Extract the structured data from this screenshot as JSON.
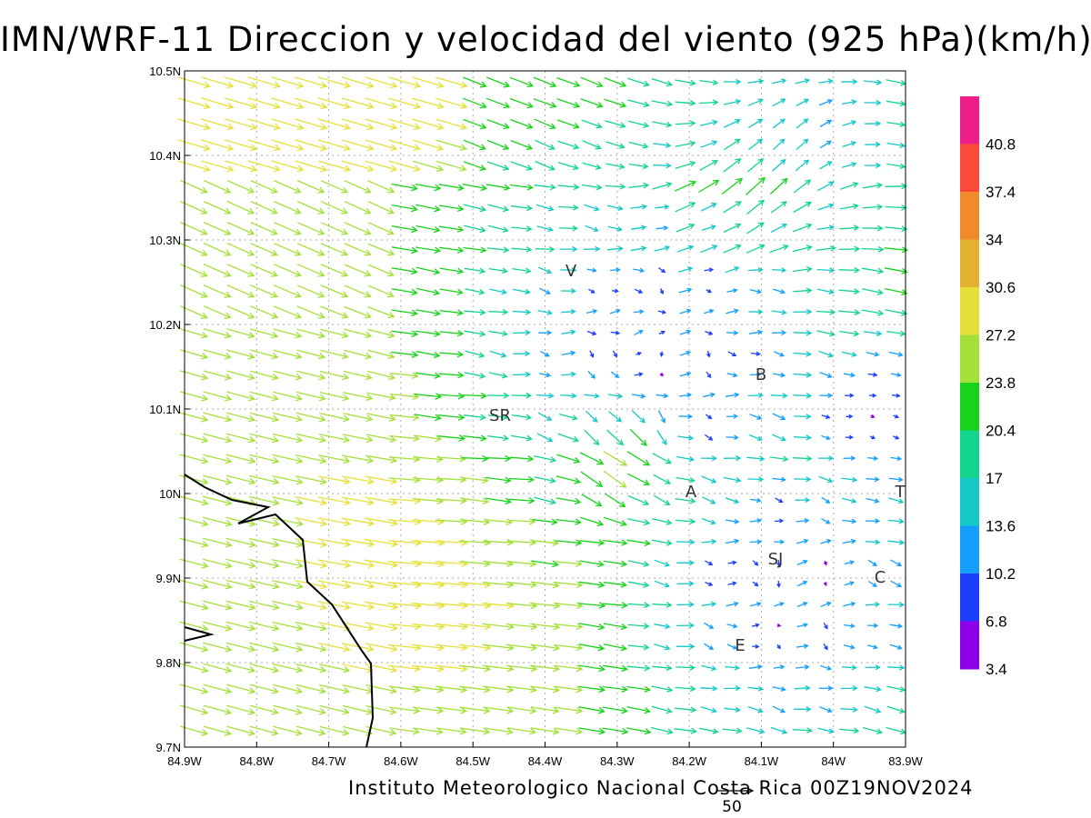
{
  "title": "IMN/WRF-11 Direccion y velocidad del viento (925 hPa)(km/h)",
  "credit": "Instituto Meteorologico Nacional Costa Rica 00Z19NOV2024",
  "reference_vector_label": "50",
  "x_ticks": [
    "84.9W",
    "84.8W",
    "84.7W",
    "84.6W",
    "84.5W",
    "84.4W",
    "84.3W",
    "84.2W",
    "84.1W",
    "84W",
    "83.9W"
  ],
  "y_ticks": [
    "10.5N",
    "10.4N",
    "10.3N",
    "10.2N",
    "10.1N",
    "10N",
    "9.9N",
    "9.8N",
    "9.7N"
  ],
  "colorbar": {
    "labels": [
      "40.8",
      "37.4",
      "34",
      "30.6",
      "27.2",
      "23.8",
      "20.4",
      "17",
      "13.6",
      "10.2",
      "6.8",
      "3.4"
    ],
    "colors": [
      "#ee1d8a",
      "#fb4a39",
      "#f08a2a",
      "#e3b030",
      "#e6e03a",
      "#a4e03a",
      "#19d21b",
      "#13d48e",
      "#13c8c6",
      "#139ffb",
      "#1c3dfb",
      "#8c00e8"
    ]
  },
  "cities": [
    {
      "label": "V"
    },
    {
      "label": "B"
    },
    {
      "label": "SR"
    },
    {
      "label": "A"
    },
    {
      "label": "T"
    },
    {
      "label": "SJ"
    },
    {
      "label": "C"
    },
    {
      "label": "E"
    }
  ],
  "chart_data": {
    "type": "wind-vector-map",
    "title": "IMN/WRF-11 Direccion y velocidad del viento (925 hPa)(km/h)",
    "xlim": [
      -84.9,
      -83.9
    ],
    "ylim": [
      9.7,
      10.5
    ],
    "units": "km/h",
    "colorbar_breaks": [
      3.4,
      6.8,
      10.2,
      13.6,
      17,
      20.4,
      23.8,
      27.2,
      30.6,
      34,
      37.4,
      40.8
    ],
    "grid": true,
    "legend_position": "right",
    "reference_vector_kmh": 50
  }
}
